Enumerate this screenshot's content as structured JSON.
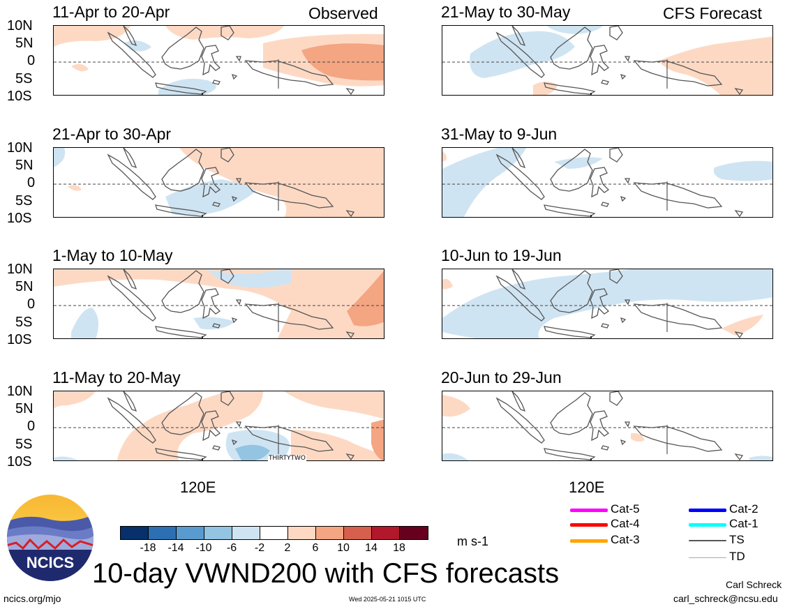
{
  "figure_title": "10-day VWND200 with CFS forecasts",
  "units": "m s-1",
  "website": "ncics.org/mjo",
  "timestamp": "Wed 2025-05-21 1015 UTC",
  "author": "Carl Schreck",
  "email": "carl_schreck@ncsu.edu",
  "logo_text": "NCICS",
  "column_tags": {
    "left": "Observed",
    "right": "CFS Forecast"
  },
  "y_ticks": [
    "10N",
    "5N",
    "0",
    "5S",
    "10S"
  ],
  "x_tick": "120E",
  "panel_note": "THIRTYTWO",
  "left_panels": [
    {
      "title": "11-Apr to 20-Apr"
    },
    {
      "title": "21-Apr to 30-Apr"
    },
    {
      "title": "1-May to 10-May"
    },
    {
      "title": "11-May to 20-May"
    }
  ],
  "right_panels": [
    {
      "title": "21-May to 30-May"
    },
    {
      "title": "31-May to 9-Jun"
    },
    {
      "title": "10-Jun to 19-Jun"
    },
    {
      "title": "20-Jun to 29-Jun"
    }
  ],
  "colorbar": {
    "labels": [
      "-18",
      "-14",
      "-10",
      "-6",
      "-2",
      "2",
      "6",
      "10",
      "14",
      "18"
    ],
    "colors": [
      "#08306b",
      "#2c6fb3",
      "#5a9bcf",
      "#93c4e2",
      "#cfe4f2",
      "#ffffff",
      "#fdd9c4",
      "#f4a582",
      "#d6604d",
      "#b2182b",
      "#67001f"
    ]
  },
  "storm_legend": [
    {
      "label": "Cat-5",
      "color": "#ff00ff",
      "weight": "thick"
    },
    {
      "label": "Cat-4",
      "color": "#ff0000",
      "weight": "thick"
    },
    {
      "label": "Cat-3",
      "color": "#ffa500",
      "weight": "thick"
    },
    {
      "label": "Cat-2",
      "color": "#0000ff",
      "weight": "thick"
    },
    {
      "label": "Cat-1",
      "color": "#00ffff",
      "weight": "thick"
    },
    {
      "label": "TS",
      "color": "#555555",
      "weight": "medium"
    },
    {
      "label": "TD",
      "color": "#aaaaaa",
      "weight": "thin"
    }
  ]
}
